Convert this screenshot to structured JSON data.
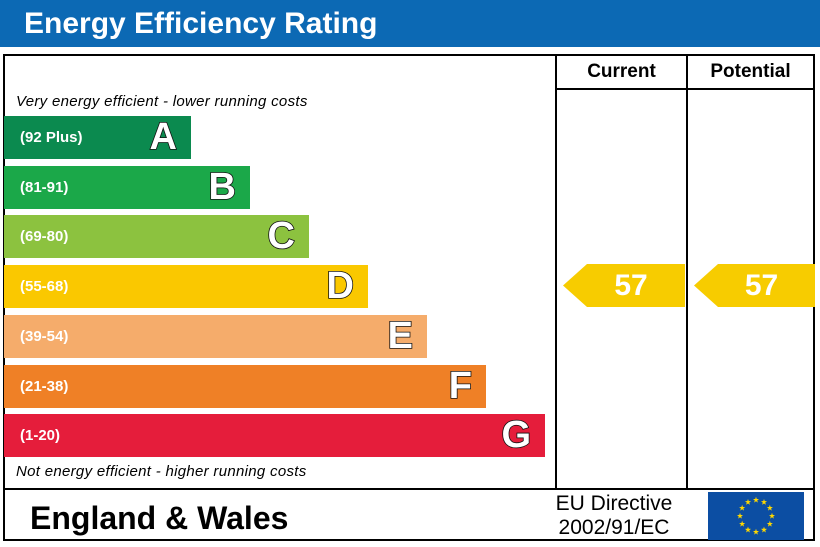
{
  "header": {
    "title": "Energy Efficiency Rating"
  },
  "columns": {
    "current": "Current",
    "potential": "Potential"
  },
  "notes": {
    "top": "Very energy efficient - lower running costs",
    "bottom": "Not energy efficient - higher running costs"
  },
  "colors": {
    "header": "#0c69b4",
    "rating_arrow": "#f7cc00",
    "eu_flag": "#0c4ea3",
    "eu_stars": "#ffd800"
  },
  "chart_data": {
    "type": "bar",
    "title": "Energy Efficiency Rating",
    "bands": [
      {
        "letter": "A",
        "range": "(92 Plus)",
        "color": "#0b8a4f"
      },
      {
        "letter": "B",
        "range": "(81-91)",
        "color": "#1ba849"
      },
      {
        "letter": "C",
        "range": "(69-80)",
        "color": "#8cc23f"
      },
      {
        "letter": "D",
        "range": "(55-68)",
        "color": "#fac800"
      },
      {
        "letter": "E",
        "range": "(39-54)",
        "color": "#f5ac6b"
      },
      {
        "letter": "F",
        "range": "(21-38)",
        "color": "#ef8026"
      },
      {
        "letter": "G",
        "range": "(1-20)",
        "color": "#e51d3b"
      }
    ],
    "current": {
      "value": "57",
      "band": "D"
    },
    "potential": {
      "value": "57",
      "band": "D"
    }
  },
  "footer": {
    "region": "England & Wales",
    "directive_line1": "EU Directive",
    "directive_line2": "2002/91/EC",
    "flag_icon": "eu-flag-icon"
  }
}
